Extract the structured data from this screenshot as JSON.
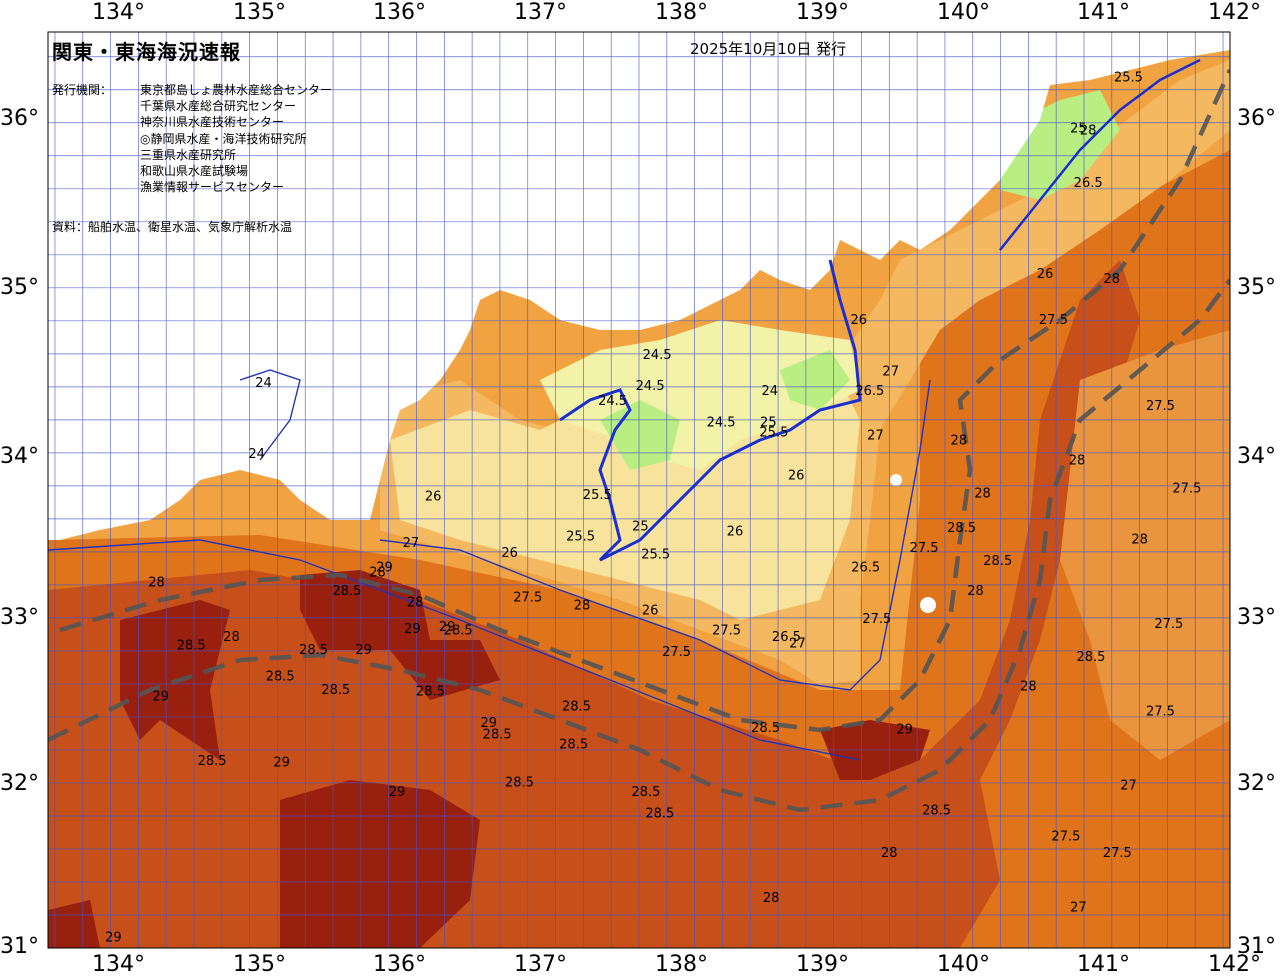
{
  "map": {
    "title": "関東・東海海況速報",
    "issue_date": "2025年10月10日 発行",
    "agency_label": "発行機関：",
    "agencies": [
      "東京都島しょ農林水産総合センター",
      "千葉県水産総合研究センター",
      "神奈川県水産技術センター",
      "◎静岡県水産・海洋技術研究所",
      "三重県水産研究所",
      "和歌山県水産試験場",
      "漁業情報サービスセンター"
    ],
    "sources": "資料：船舶水温、衛星水温、気象庁解析水温",
    "lon_labels": [
      "134°",
      "135°",
      "136°",
      "137°",
      "138°",
      "139°",
      "140°",
      "141°",
      "142°"
    ],
    "lat_labels": [
      "36°",
      "35°",
      "34°",
      "33°",
      "32°",
      "31°"
    ],
    "isotherm_labels": [
      {
        "t": "24.5",
        "lon": 137.93,
        "lat": 34.57
      },
      {
        "t": "24.5",
        "lon": 138.39,
        "lat": 34.16
      },
      {
        "t": "24.5",
        "lon": 137.88,
        "lat": 34.38
      },
      {
        "t": "24.5",
        "lon": 137.61,
        "lat": 34.29
      },
      {
        "t": "24",
        "lon": 138.74,
        "lat": 34.35
      },
      {
        "t": "24",
        "lon": 135.1,
        "lat": 34.4
      },
      {
        "t": "24",
        "lon": 135.05,
        "lat": 33.97
      },
      {
        "t": "25",
        "lon": 140.96,
        "lat": 35.94
      },
      {
        "t": "25",
        "lon": 138.73,
        "lat": 34.16
      },
      {
        "t": "25.5",
        "lon": 141.32,
        "lat": 36.25
      },
      {
        "t": "25.5",
        "lon": 137.38,
        "lat": 33.47
      },
      {
        "t": "25.5",
        "lon": 137.5,
        "lat": 33.72
      },
      {
        "t": "25.5",
        "lon": 137.92,
        "lat": 33.36
      },
      {
        "t": "25.5",
        "lon": 138.77,
        "lat": 34.1
      },
      {
        "t": "25",
        "lon": 137.81,
        "lat": 33.53
      },
      {
        "t": "26",
        "lon": 136.32,
        "lat": 33.71
      },
      {
        "t": "26",
        "lon": 138.93,
        "lat": 33.84
      },
      {
        "t": "26",
        "lon": 138.49,
        "lat": 33.5
      },
      {
        "t": "26",
        "lon": 139.38,
        "lat": 34.78
      },
      {
        "t": "26",
        "lon": 137.88,
        "lat": 33.02
      },
      {
        "t": "26",
        "lon": 136.87,
        "lat": 33.37
      },
      {
        "t": "26",
        "lon": 140.72,
        "lat": 35.06
      },
      {
        "t": "26.5",
        "lon": 139.46,
        "lat": 34.35
      },
      {
        "t": "26.5",
        "lon": 141.03,
        "lat": 35.61
      },
      {
        "t": "26.5",
        "lon": 138.86,
        "lat": 32.86
      },
      {
        "t": "26.5",
        "lon": 139.43,
        "lat": 33.28
      },
      {
        "t": "27",
        "lon": 136.16,
        "lat": 33.43
      },
      {
        "t": "27",
        "lon": 138.94,
        "lat": 32.82
      },
      {
        "t": "27",
        "lon": 139.61,
        "lat": 34.47
      },
      {
        "t": "27",
        "lon": 140.96,
        "lat": 31.22
      },
      {
        "t": "27",
        "lon": 141.32,
        "lat": 31.96
      },
      {
        "t": "27",
        "lon": 139.5,
        "lat": 34.08
      },
      {
        "t": "27.5",
        "lon": 137.0,
        "lat": 33.1
      },
      {
        "t": "27.5",
        "lon": 138.43,
        "lat": 32.9
      },
      {
        "t": "27.5",
        "lon": 138.07,
        "lat": 32.77
      },
      {
        "t": "27.5",
        "lon": 139.51,
        "lat": 32.97
      },
      {
        "t": "27.5",
        "lon": 140.78,
        "lat": 34.78
      },
      {
        "t": "27.5",
        "lon": 141.55,
        "lat": 34.26
      },
      {
        "t": "27.5",
        "lon": 141.55,
        "lat": 32.41
      },
      {
        "t": "27.5",
        "lon": 141.61,
        "lat": 32.94
      },
      {
        "t": "27.5",
        "lon": 140.87,
        "lat": 31.65
      },
      {
        "t": "27.5",
        "lon": 141.24,
        "lat": 31.55
      },
      {
        "t": "27.5",
        "lon": 141.74,
        "lat": 33.76
      },
      {
        "t": "27.5",
        "lon": 139.85,
        "lat": 33.4
      },
      {
        "t": "28",
        "lon": 134.87,
        "lat": 32.86
      },
      {
        "t": "28",
        "lon": 134.33,
        "lat": 33.19
      },
      {
        "t": "28",
        "lon": 137.39,
        "lat": 33.05
      },
      {
        "t": "28",
        "lon": 140.1,
        "lat": 34.05
      },
      {
        "t": "28",
        "lon": 140.95,
        "lat": 33.93
      },
      {
        "t": "28",
        "lon": 141.2,
        "lat": 35.03
      },
      {
        "t": "28",
        "lon": 141.03,
        "lat": 35.93
      },
      {
        "t": "28",
        "lon": 140.6,
        "lat": 32.56
      },
      {
        "t": "28",
        "lon": 139.6,
        "lat": 31.55
      },
      {
        "t": "28",
        "lon": 138.75,
        "lat": 31.28
      },
      {
        "t": "28",
        "lon": 140.22,
        "lat": 33.14
      },
      {
        "t": "28",
        "lon": 140.27,
        "lat": 33.73
      },
      {
        "t": "28",
        "lon": 141.4,
        "lat": 33.45
      },
      {
        "t": "28",
        "lon": 136.19,
        "lat": 33.07
      },
      {
        "t": "28",
        "lon": 135.92,
        "lat": 33.25
      },
      {
        "t": "28.5",
        "lon": 134.58,
        "lat": 32.81
      },
      {
        "t": "28.5",
        "lon": 135.46,
        "lat": 32.78
      },
      {
        "t": "28.5",
        "lon": 135.22,
        "lat": 32.62
      },
      {
        "t": "28.5",
        "lon": 134.73,
        "lat": 32.11
      },
      {
        "t": "28.5",
        "lon": 135.62,
        "lat": 32.54
      },
      {
        "t": "28.5",
        "lon": 136.78,
        "lat": 32.27
      },
      {
        "t": "28.5",
        "lon": 137.35,
        "lat": 32.44
      },
      {
        "t": "28.5",
        "lon": 137.85,
        "lat": 31.92
      },
      {
        "t": "28.5",
        "lon": 137.33,
        "lat": 32.21
      },
      {
        "t": "28.5",
        "lon": 138.71,
        "lat": 32.31
      },
      {
        "t": "28.5",
        "lon": 140.38,
        "lat": 33.32
      },
      {
        "t": "28.5",
        "lon": 140.12,
        "lat": 33.52
      },
      {
        "t": "28.5",
        "lon": 141.05,
        "lat": 32.74
      },
      {
        "t": "28.5",
        "lon": 136.3,
        "lat": 32.53
      },
      {
        "t": "28.5",
        "lon": 137.95,
        "lat": 31.79
      },
      {
        "t": "28.5",
        "lon": 139.94,
        "lat": 31.81
      },
      {
        "t": "28.5",
        "lon": 136.94,
        "lat": 31.98
      },
      {
        "t": "28.5",
        "lon": 135.7,
        "lat": 33.14
      },
      {
        "t": "28.5",
        "lon": 136.5,
        "lat": 32.9
      },
      {
        "t": "29",
        "lon": 135.23,
        "lat": 32.1
      },
      {
        "t": "29",
        "lon": 134.36,
        "lat": 32.5
      },
      {
        "t": "29",
        "lon": 135.82,
        "lat": 32.78
      },
      {
        "t": "29",
        "lon": 136.72,
        "lat": 32.34
      },
      {
        "t": "29",
        "lon": 139.71,
        "lat": 32.3
      },
      {
        "t": "29",
        "lon": 135.97,
        "lat": 33.28
      },
      {
        "t": "29",
        "lon": 136.42,
        "lat": 32.92
      },
      {
        "t": "29",
        "lon": 136.17,
        "lat": 32.91
      },
      {
        "t": "29",
        "lon": 136.06,
        "lat": 31.92
      },
      {
        "t": "29",
        "lon": 134.02,
        "lat": 31.04
      }
    ]
  }
}
